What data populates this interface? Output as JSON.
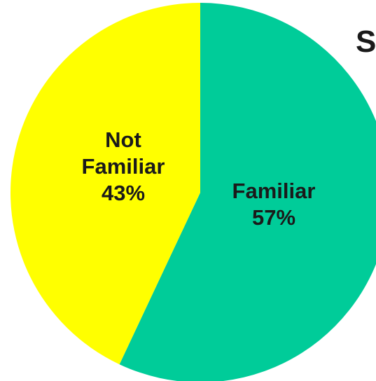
{
  "chart_data": {
    "type": "pie",
    "title": "S",
    "slices": [
      {
        "label_lines": [
          "Familiar",
          "57%"
        ],
        "category": "Familiar",
        "value": 57,
        "color": "#00cc99"
      },
      {
        "label_lines": [
          "Not",
          "Familiar",
          "43%"
        ],
        "category": "Not Familiar",
        "value": 43,
        "color": "#ffff00"
      }
    ],
    "start_angle_deg": 0,
    "direction": "clockwise",
    "legend": "none"
  }
}
